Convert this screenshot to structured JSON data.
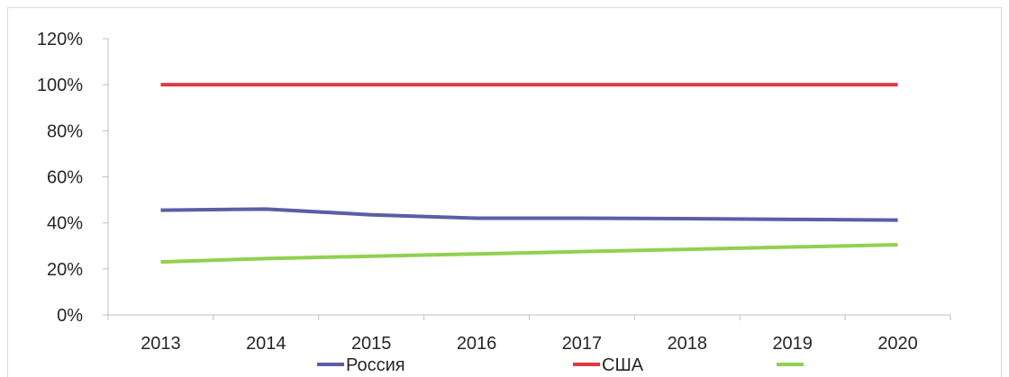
{
  "chart_data": {
    "type": "line",
    "categories": [
      "2013",
      "2014",
      "2015",
      "2016",
      "2017",
      "2018",
      "2019",
      "2020"
    ],
    "ylim": [
      0,
      120
    ],
    "yticks": [
      0,
      20,
      40,
      60,
      80,
      100,
      120
    ],
    "ytick_labels": [
      "0%",
      "20%",
      "40%",
      "60%",
      "80%",
      "100%",
      "120%"
    ],
    "grid": false,
    "legend_position": "bottom",
    "series": [
      {
        "name": "Россия",
        "color": "#5b5ea6",
        "values": [
          45.5,
          46,
          43.5,
          42,
          42,
          41.8,
          41.5,
          41.2
        ]
      },
      {
        "name": "США",
        "color": "#e0393e",
        "values": [
          100,
          100,
          100,
          100,
          100,
          100,
          100,
          100
        ]
      },
      {
        "name": "",
        "color": "#92d050",
        "values": [
          23,
          24.5,
          25.5,
          26.5,
          27.5,
          28.5,
          29.5,
          30.5
        ]
      }
    ]
  }
}
